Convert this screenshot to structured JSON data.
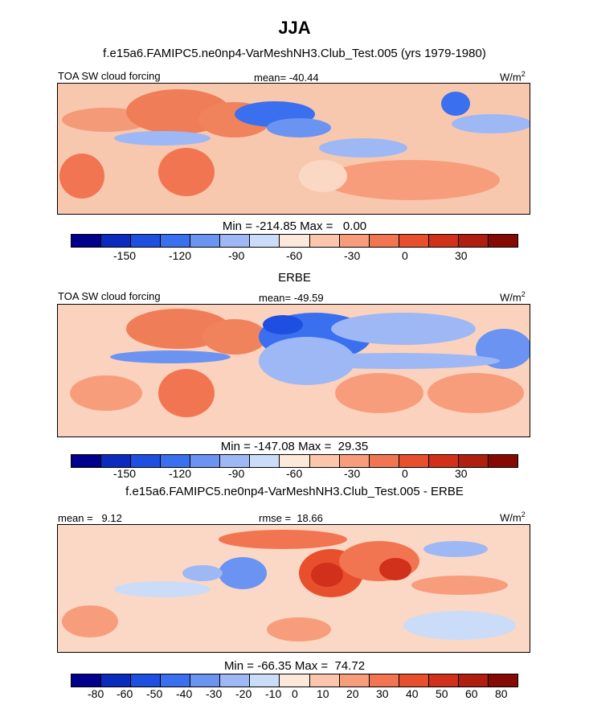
{
  "header": {
    "title": "JJA",
    "case": "f.e15a6.FAMIPC5.ne0np4-VarMeshNH3.Club_Test.005 (yrs 1979-1980)"
  },
  "chart_data": [
    {
      "type": "heatmap",
      "label": "TOA SW cloud forcing",
      "mean_text": "mean= -40.44",
      "units": "W/m",
      "units_sup": "2",
      "minmax_text": "Min = -214.85 Max =   0.00",
      "colorbar_ticks": [
        "-150",
        "-120",
        "-90",
        "-60",
        "-30",
        "0",
        "30"
      ]
    },
    {
      "type": "heatmap",
      "title": "ERBE",
      "label": "TOA SW cloud forcing",
      "mean_text": "mean= -49.59",
      "units": "W/m",
      "units_sup": "2",
      "minmax_text": "Min = -147.08 Max =  29.35",
      "colorbar_ticks": [
        "-150",
        "-120",
        "-90",
        "-60",
        "-30",
        "0",
        "30"
      ]
    },
    {
      "type": "heatmap",
      "title": "f.e15a6.FAMIPC5.ne0np4-VarMeshNH3.Club_Test.005 - ERBE",
      "mean_text": "mean =   9.12",
      "rmse_text": "rmse =  18.66",
      "units": "W/m",
      "units_sup": "2",
      "minmax_text": "Min = -66.35 Max =  74.72",
      "colorbar_ticks": [
        "-80",
        "-60",
        "-50",
        "-40",
        "-30",
        "-20",
        "-10",
        "0",
        "10",
        "20",
        "30",
        "40",
        "50",
        "60",
        "80"
      ]
    }
  ],
  "palette": [
    "#00008c",
    "#0b2bbf",
    "#1e4fe0",
    "#3a6ff0",
    "#6b93f2",
    "#9db8f5",
    "#cadcf7",
    "#fde8dc",
    "#fbc6ac",
    "#f79d7c",
    "#f27552",
    "#e8502d",
    "#d1301a",
    "#b01e0f",
    "#860a04"
  ]
}
